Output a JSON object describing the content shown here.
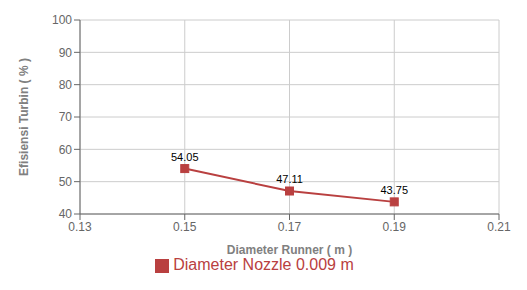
{
  "chart_data": {
    "type": "line",
    "x": [
      0.15,
      0.17,
      0.19
    ],
    "series": [
      {
        "name": "Diameter Nozzle 0.009 m",
        "color": "#b94040",
        "values": [
          54.05,
          47.11,
          43.75
        ],
        "marker": "square"
      }
    ],
    "xlabel": "Diameter Runner ( m )",
    "ylabel": "Efisiensi Turbin ( % )",
    "xlim": [
      0.13,
      0.21
    ],
    "ylim": [
      40,
      100
    ],
    "xticks": [
      0.13,
      0.15,
      0.17,
      0.19,
      0.21
    ],
    "yticks": [
      40,
      50,
      60,
      70,
      80,
      90,
      100
    ],
    "grid": true,
    "legend": "bottom",
    "data_labels": true
  }
}
